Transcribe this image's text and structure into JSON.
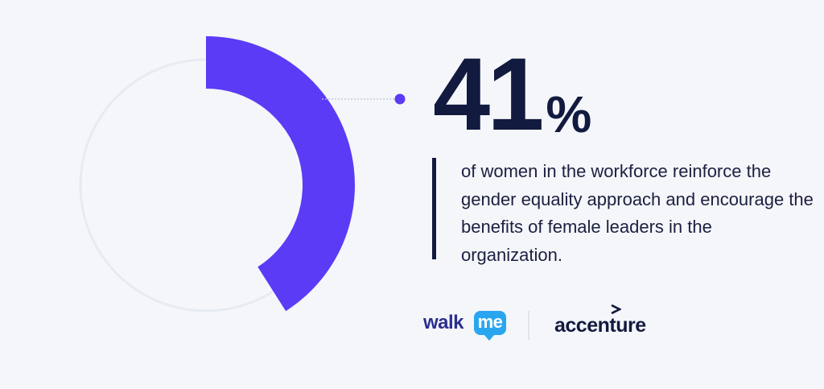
{
  "chart_data": {
    "type": "pie",
    "variant": "donut",
    "values": [
      41,
      59
    ],
    "labels": [
      "",
      ""
    ],
    "highlight_value": 41,
    "unit": "%",
    "colors": {
      "highlight": "#5b3bf5",
      "track": "#e6ebf2",
      "callout_dot": "#5b3bf5",
      "callout_line": "#b9c4d6"
    }
  },
  "stat": {
    "number": "41",
    "unit": "%",
    "description": "of women in the workforce reinforce the gender equality approach and encourage the benefits of female leaders in the organization."
  },
  "logos": {
    "walkme": {
      "word": "walk",
      "bubble_text": "me",
      "color": "#2b2f8f",
      "bubble_color": "#2aa6f0"
    },
    "accenture": {
      "word": "accenture",
      "mark": ">",
      "color": "#131a3f"
    }
  },
  "colors": {
    "background": "#f4f6fa",
    "text_dark": "#131a3f"
  }
}
